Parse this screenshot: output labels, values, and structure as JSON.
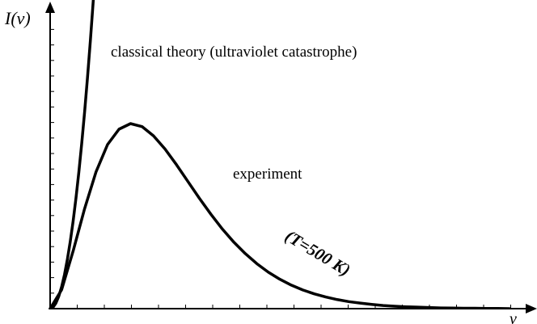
{
  "chart_data": {
    "type": "line",
    "ylabel": "I(ν)",
    "xlabel": "ν",
    "annotations": {
      "classical": "classical theory (ultraviolet catastrophe)",
      "experiment": "experiment",
      "temperature": "(T=500 K)"
    },
    "axis_tick_counts": {
      "x": 18,
      "y": 14
    },
    "series": [
      {
        "name": "classical theory (ultraviolet catastrophe)",
        "x": [
          0,
          1,
          2,
          3,
          4,
          5,
          6,
          7,
          8,
          9,
          10,
          11,
          12,
          13,
          14,
          15,
          16,
          17,
          18
        ],
        "y": [
          0,
          0.0074,
          0.0295,
          0.0664,
          0.118,
          0.184,
          0.266,
          0.362,
          0.472,
          0.598,
          0.738,
          0.893,
          1.062,
          1.247,
          1.446,
          1.66,
          1.889,
          2.132,
          2.39
        ]
      },
      {
        "name": "experiment",
        "x": [
          0,
          4,
          8,
          12,
          16,
          20,
          24,
          28,
          32,
          36,
          40,
          44,
          48,
          52,
          56,
          60,
          64,
          68,
          72,
          76,
          80,
          84,
          88,
          92,
          96,
          100,
          104,
          108,
          112,
          116,
          120,
          124,
          128,
          132,
          136,
          140,
          144,
          148,
          152,
          156,
          160
        ],
        "y": [
          0,
          0.102,
          0.311,
          0.54,
          0.74,
          0.887,
          0.97,
          1.0,
          0.984,
          0.934,
          0.863,
          0.778,
          0.687,
          0.596,
          0.51,
          0.43,
          0.359,
          0.297,
          0.243,
          0.197,
          0.159,
          0.127,
          0.101,
          0.08,
          0.063,
          0.049,
          0.038,
          0.03,
          0.023,
          0.017,
          0.013,
          0.01,
          0.008,
          0.006,
          0.004,
          0.003,
          0.002,
          0.002,
          0.001,
          0.001,
          0.0
        ]
      }
    ]
  }
}
